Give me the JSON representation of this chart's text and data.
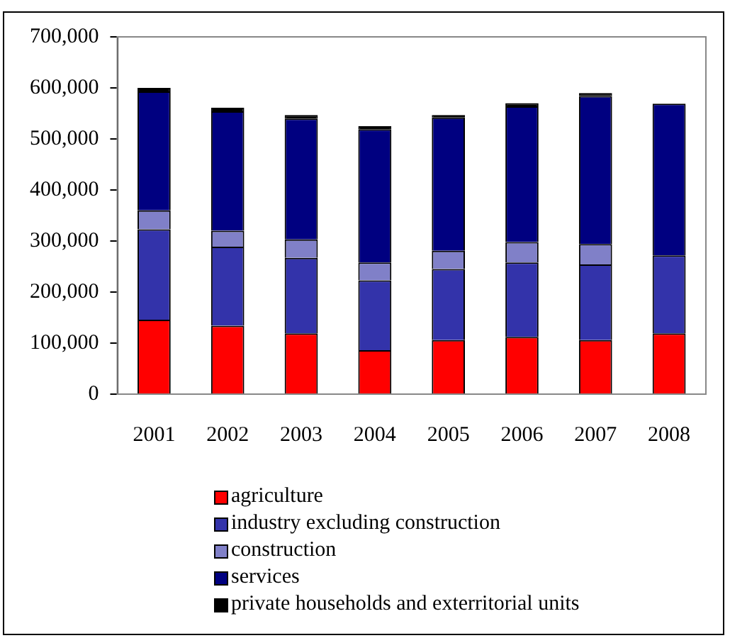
{
  "chart_data": {
    "type": "bar",
    "stacked": true,
    "categories": [
      "2001",
      "2002",
      "2003",
      "2004",
      "2005",
      "2006",
      "2007",
      "2008"
    ],
    "ylim": [
      0,
      700000
    ],
    "yticks": [
      0,
      {
        "value": 100000,
        "label": "100,000"
      },
      {
        "value": 200000,
        "label": "200,000"
      },
      {
        "value": 300000,
        "label": "300,000"
      },
      {
        "value": 400000,
        "label": "400,000"
      },
      {
        "value": 500000,
        "label": "500,000"
      },
      {
        "value": 600000,
        "label": "600,000"
      },
      {
        "value": 700000,
        "label": "700,000"
      }
    ],
    "grid": false,
    "legend": "bottom",
    "series": [
      {
        "name": "agriculture",
        "color": "#ff0000",
        "values": [
          146000,
          134000,
          119000,
          86000,
          106000,
          112000,
          106000,
          119000
        ]
      },
      {
        "name": "industry excluding construction",
        "color": "#3333aa",
        "values": [
          177000,
          155000,
          148000,
          137000,
          139000,
          146000,
          148000,
          153000
        ]
      },
      {
        "name": "construction",
        "color": "#8080c8",
        "values": [
          37000,
          31000,
          36000,
          35000,
          36000,
          40000,
          40000,
          null
        ]
      },
      {
        "name": "services",
        "color": "#000080",
        "values": [
          233000,
          234000,
          237000,
          261000,
          261000,
          266000,
          290000,
          297000
        ]
      },
      {
        "name": "private households and exterritorial units",
        "color": "#000000",
        "values": [
          7000,
          7000,
          7000,
          6000,
          5000,
          6000,
          6000,
          null
        ]
      }
    ]
  }
}
